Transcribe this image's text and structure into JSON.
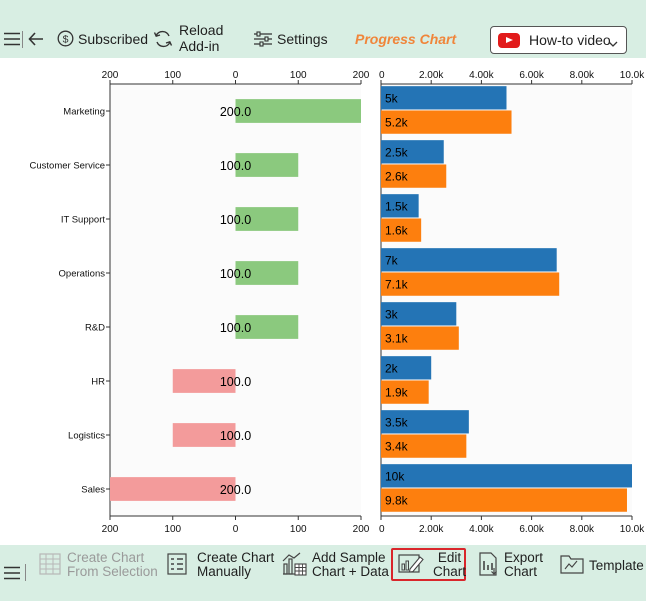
{
  "toolbar": {
    "subscribed": "Subscribed",
    "reload_line1": "Reload",
    "reload_line2": "Add-in",
    "settings": "Settings",
    "title": "Progress Chart",
    "howto": "How-to video"
  },
  "bottom_toolbar": {
    "create_sel_1": "Create Chart",
    "create_sel_2": "From Selection",
    "create_man_1": "Create Chart",
    "create_man_2": "Manually",
    "sample_1": "Add Sample",
    "sample_2": "Chart + Data",
    "edit_1": "Edit",
    "edit_2": "Chart",
    "export_1": "Export",
    "export_2": "Chart",
    "template": "Template"
  },
  "colors": {
    "positive": "#8bc97e",
    "negative": "#f39b9b",
    "series_a": "#2474b5",
    "series_b": "#fd7f0e",
    "toolbar_bg": "#d8eee3",
    "title_accent": "#f0853a"
  },
  "chart_data": [
    {
      "type": "bar",
      "orientation": "horizontal",
      "categories": [
        "Marketing",
        "Customer Service",
        "IT Support",
        "Operations",
        "R&D",
        "HR",
        "Logistics",
        "Sales"
      ],
      "values": [
        200,
        100,
        100,
        100,
        100,
        -100,
        -100,
        -200
      ],
      "labels": [
        "200.0",
        "100.0",
        "100.0",
        "100.0",
        "100.0",
        "100.0",
        "100.0",
        "200.0"
      ],
      "xlim": [
        -200,
        200
      ],
      "ticks": [
        -200,
        -100,
        0,
        100,
        200
      ],
      "tick_labels": [
        "200",
        "100",
        "0",
        "100",
        "200"
      ]
    },
    {
      "type": "bar",
      "orientation": "horizontal",
      "categories": [
        "Marketing",
        "Customer Service",
        "IT Support",
        "Operations",
        "R&D",
        "HR",
        "Logistics",
        "Sales"
      ],
      "series": [
        {
          "values": [
            5000,
            2500,
            1500,
            7000,
            3000,
            2000,
            3500,
            10000
          ],
          "labels": [
            "5k",
            "2.5k",
            "1.5k",
            "7k",
            "3k",
            "2k",
            "3.5k",
            "10k"
          ]
        },
        {
          "values": [
            5200,
            2600,
            1600,
            7100,
            3100,
            1900,
            3400,
            9800
          ],
          "labels": [
            "5.2k",
            "2.6k",
            "1.6k",
            "7.1k",
            "3.1k",
            "1.9k",
            "3.4k",
            "9.8k"
          ]
        }
      ],
      "xlim": [
        0,
        10000
      ],
      "ticks": [
        0,
        2000,
        4000,
        6000,
        8000,
        10000
      ],
      "tick_labels": [
        "0",
        "2.00k",
        "4.00k",
        "6.00k",
        "8.00k",
        "10.0k"
      ]
    }
  ]
}
